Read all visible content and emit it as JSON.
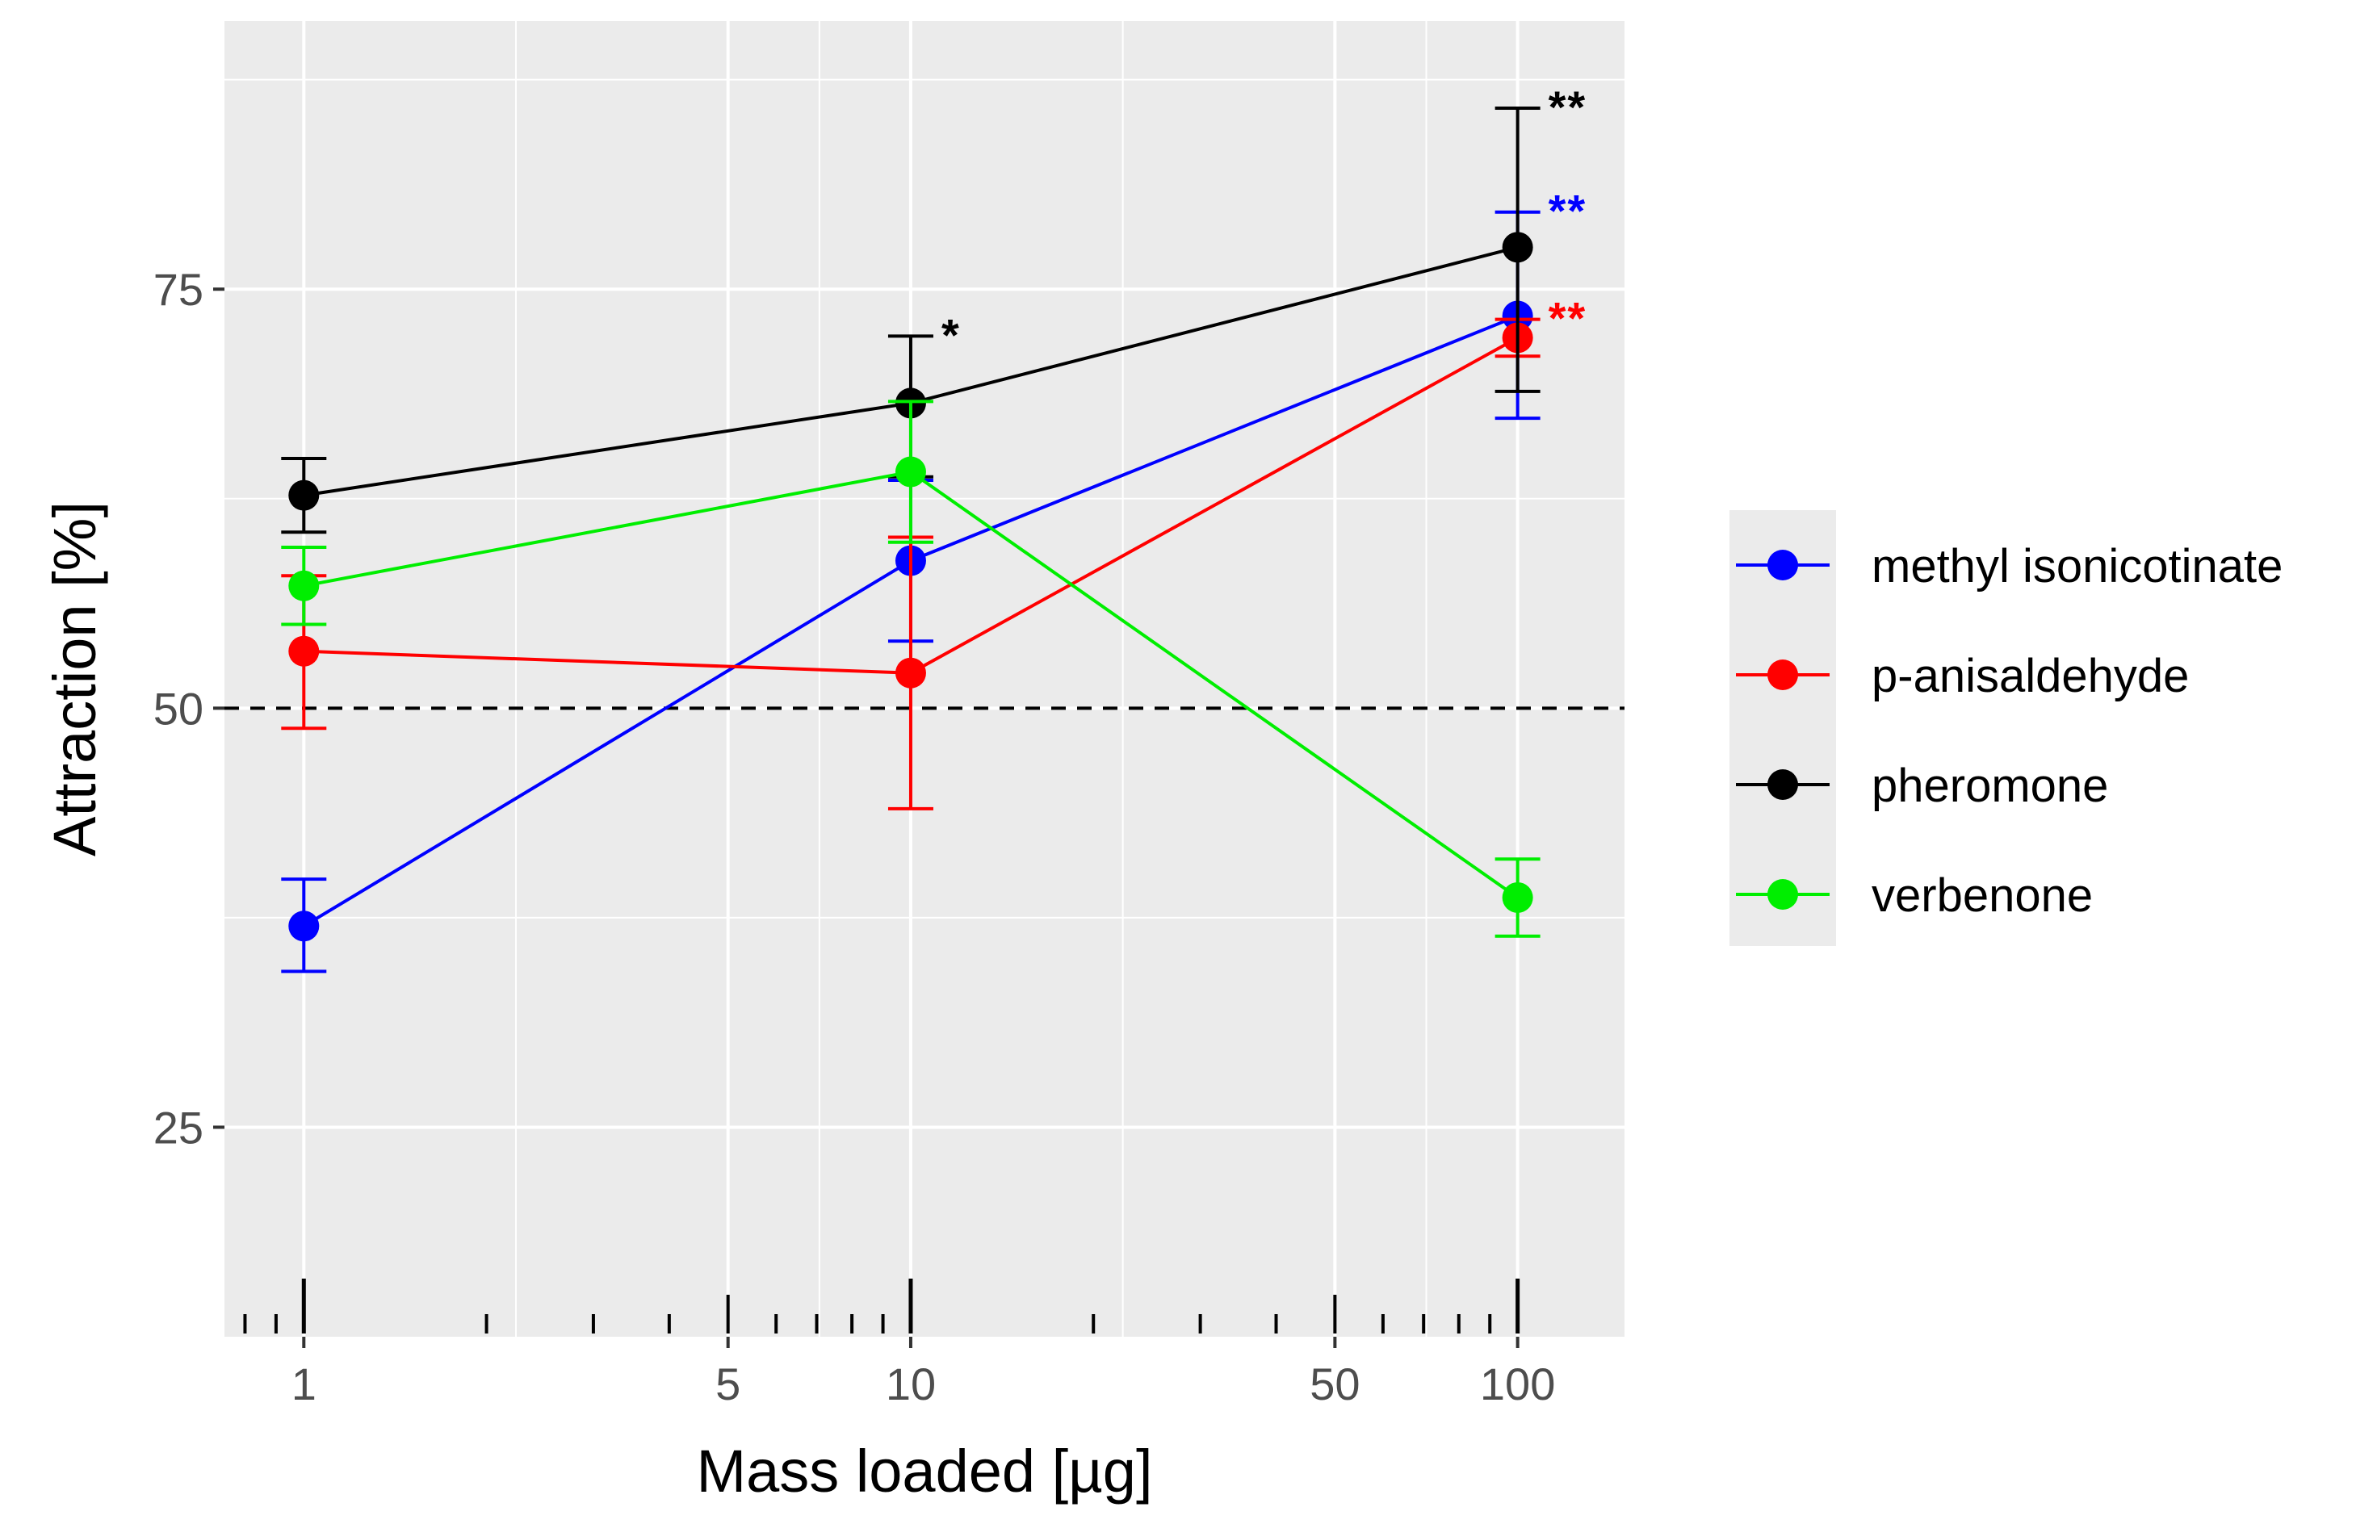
{
  "chart_data": {
    "type": "line",
    "title": "",
    "xlabel": "Mass loaded [µg]",
    "ylabel": "Attraction [%]",
    "x_scale": "log10",
    "x": [
      1,
      10,
      100
    ],
    "xlim": [
      0.74,
      150
    ],
    "ylim": [
      12.5,
      91
    ],
    "x_ticks": [
      1,
      5,
      10,
      50,
      100
    ],
    "x_tick_labels": [
      "1",
      "5",
      "10",
      "50",
      "100"
    ],
    "y_ticks": [
      25,
      50,
      75
    ],
    "y_tick_labels": [
      "25",
      "50",
      "75"
    ],
    "reference_line": {
      "y": 50,
      "style": "dashed",
      "color": "#000000"
    },
    "grid": true,
    "series": [
      {
        "name": "methyl isonicotinate",
        "color": "#0000ff",
        "values": [
          37,
          58.8,
          73.4
        ],
        "error_low": [
          34.3,
          54,
          67.3
        ],
        "error_high": [
          39.8,
          63.6,
          79.6
        ],
        "significance": [
          "",
          "",
          "**"
        ]
      },
      {
        "name": "p-anisaldehyde",
        "color": "#ff0000",
        "values": [
          53.4,
          52.1,
          72.1
        ],
        "error_low": [
          48.8,
          44,
          71
        ],
        "error_high": [
          57.9,
          60.2,
          73.2
        ],
        "significance": [
          "",
          "",
          "**"
        ]
      },
      {
        "name": "pheromone",
        "color": "#000000",
        "values": [
          62.7,
          68.2,
          77.5
        ],
        "error_low": [
          60.5,
          63.8,
          68.9
        ],
        "error_high": [
          64.9,
          72.2,
          85.8
        ],
        "significance": [
          "",
          "*",
          "**"
        ]
      },
      {
        "name": "verbenone",
        "color": "#00ee00",
        "values": [
          57.3,
          64.1,
          38.7
        ],
        "error_low": [
          55,
          59.9,
          36.4
        ],
        "error_high": [
          59.6,
          68.3,
          41
        ],
        "significance": [
          "",
          "",
          ""
        ]
      }
    ],
    "legend": {
      "position": "right",
      "entries": [
        "methyl isonicotinate",
        "p-anisaldehyde",
        "pheromone",
        "verbenone"
      ]
    }
  }
}
